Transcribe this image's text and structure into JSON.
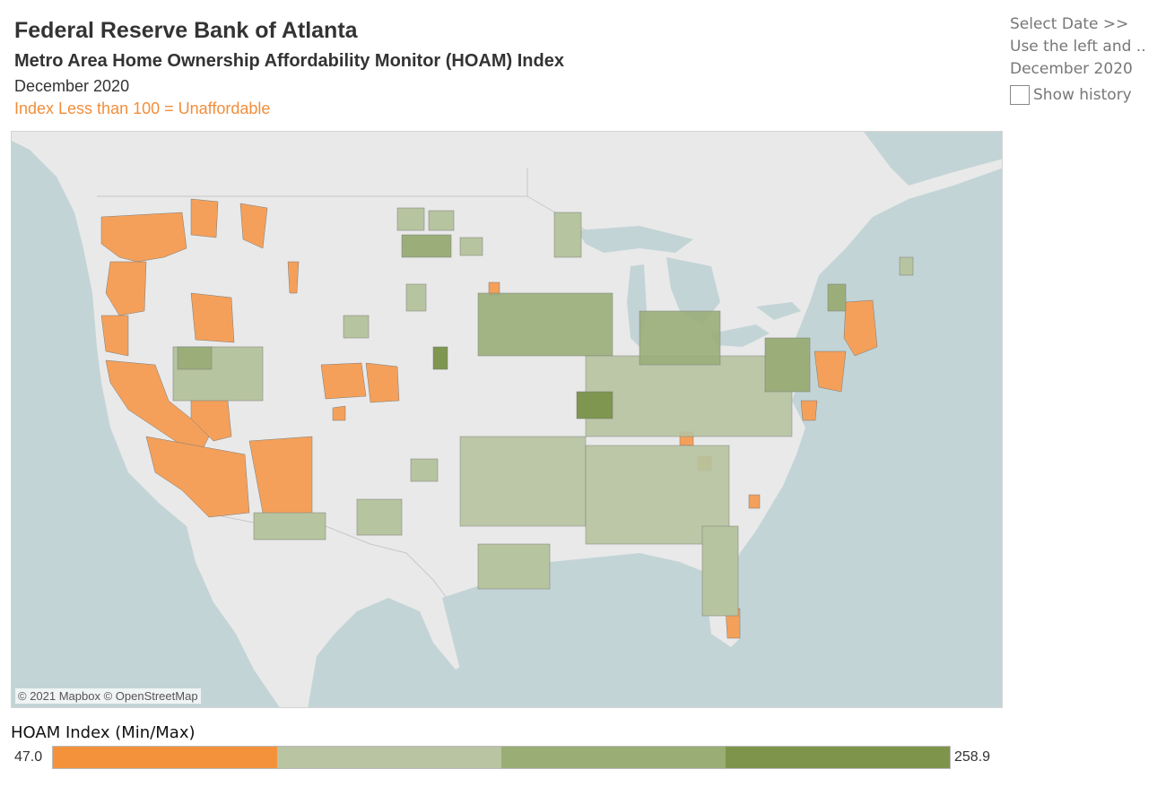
{
  "header": {
    "organization": "Federal Reserve Bank of Atlanta",
    "subtitle": "Metro Area Home Ownership Affordability Monitor (HOAM) Index",
    "date": "December 2020",
    "note": "Index Less than 100 = Unaffordable"
  },
  "controls": {
    "select_date": "Select Date >>",
    "instructions": "Use the left and ..",
    "current_date": "December 2020",
    "show_history_label": "Show history",
    "show_history_checked": false
  },
  "map": {
    "attribution": "© 2021 Mapbox © OpenStreetMap",
    "colors": {
      "land": "#e9e9e9",
      "water": "#c3d4d6",
      "unaffordable": "#f4a05a",
      "light_green": "#b7c4a0",
      "mid_green": "#9bae7a",
      "dark_green": "#7e9650"
    }
  },
  "legend": {
    "title": "HOAM Index (Min/Max)",
    "min": "47.0",
    "max": "258.9",
    "colors": [
      "#f4923c",
      "#b9c4a2",
      "#9aad74",
      "#7f944b"
    ]
  }
}
